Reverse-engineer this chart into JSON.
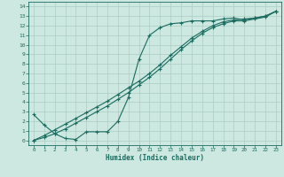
{
  "xlabel": "Humidex (Indice chaleur)",
  "xlim": [
    -0.5,
    23.5
  ],
  "ylim": [
    -0.5,
    14.5
  ],
  "xticks": [
    0,
    1,
    2,
    3,
    4,
    5,
    6,
    7,
    8,
    9,
    10,
    11,
    12,
    13,
    14,
    15,
    16,
    17,
    18,
    19,
    20,
    21,
    22,
    23
  ],
  "yticks": [
    0,
    1,
    2,
    3,
    4,
    5,
    6,
    7,
    8,
    9,
    10,
    11,
    12,
    13,
    14
  ],
  "bg_color": "#cce8e0",
  "grid_color": "#aaccc4",
  "line_color": "#1a6b60",
  "line1_x": [
    0,
    1,
    2,
    3,
    4,
    5,
    6,
    7,
    8,
    9,
    10,
    11,
    12,
    13,
    14,
    15,
    16,
    17,
    18,
    19,
    20,
    21,
    22,
    23
  ],
  "line1_y": [
    2.7,
    1.6,
    0.7,
    0.2,
    0.1,
    0.9,
    0.9,
    0.9,
    2.0,
    4.5,
    8.5,
    11.0,
    11.8,
    12.2,
    12.3,
    12.5,
    12.5,
    12.5,
    12.7,
    12.8,
    12.6,
    12.8,
    13.0,
    13.5
  ],
  "line2_x": [
    0,
    1,
    2,
    3,
    4,
    5,
    6,
    7,
    8,
    9,
    10,
    11,
    12,
    13,
    14,
    15,
    16,
    17,
    18,
    19,
    20,
    21,
    22,
    23
  ],
  "line2_y": [
    0.0,
    0.3,
    0.7,
    1.2,
    1.8,
    2.4,
    3.0,
    3.6,
    4.3,
    5.0,
    5.8,
    6.6,
    7.5,
    8.5,
    9.5,
    10.4,
    11.2,
    11.8,
    12.2,
    12.5,
    12.5,
    12.7,
    12.9,
    13.5
  ],
  "line3_x": [
    0,
    1,
    2,
    3,
    4,
    5,
    6,
    7,
    8,
    9,
    10,
    11,
    12,
    13,
    14,
    15,
    16,
    17,
    18,
    19,
    20,
    21,
    22,
    23
  ],
  "line3_y": [
    0.0,
    0.5,
    1.1,
    1.7,
    2.3,
    2.9,
    3.5,
    4.1,
    4.8,
    5.5,
    6.2,
    7.0,
    7.9,
    8.9,
    9.8,
    10.7,
    11.4,
    12.0,
    12.4,
    12.6,
    12.7,
    12.8,
    13.0,
    13.5
  ]
}
